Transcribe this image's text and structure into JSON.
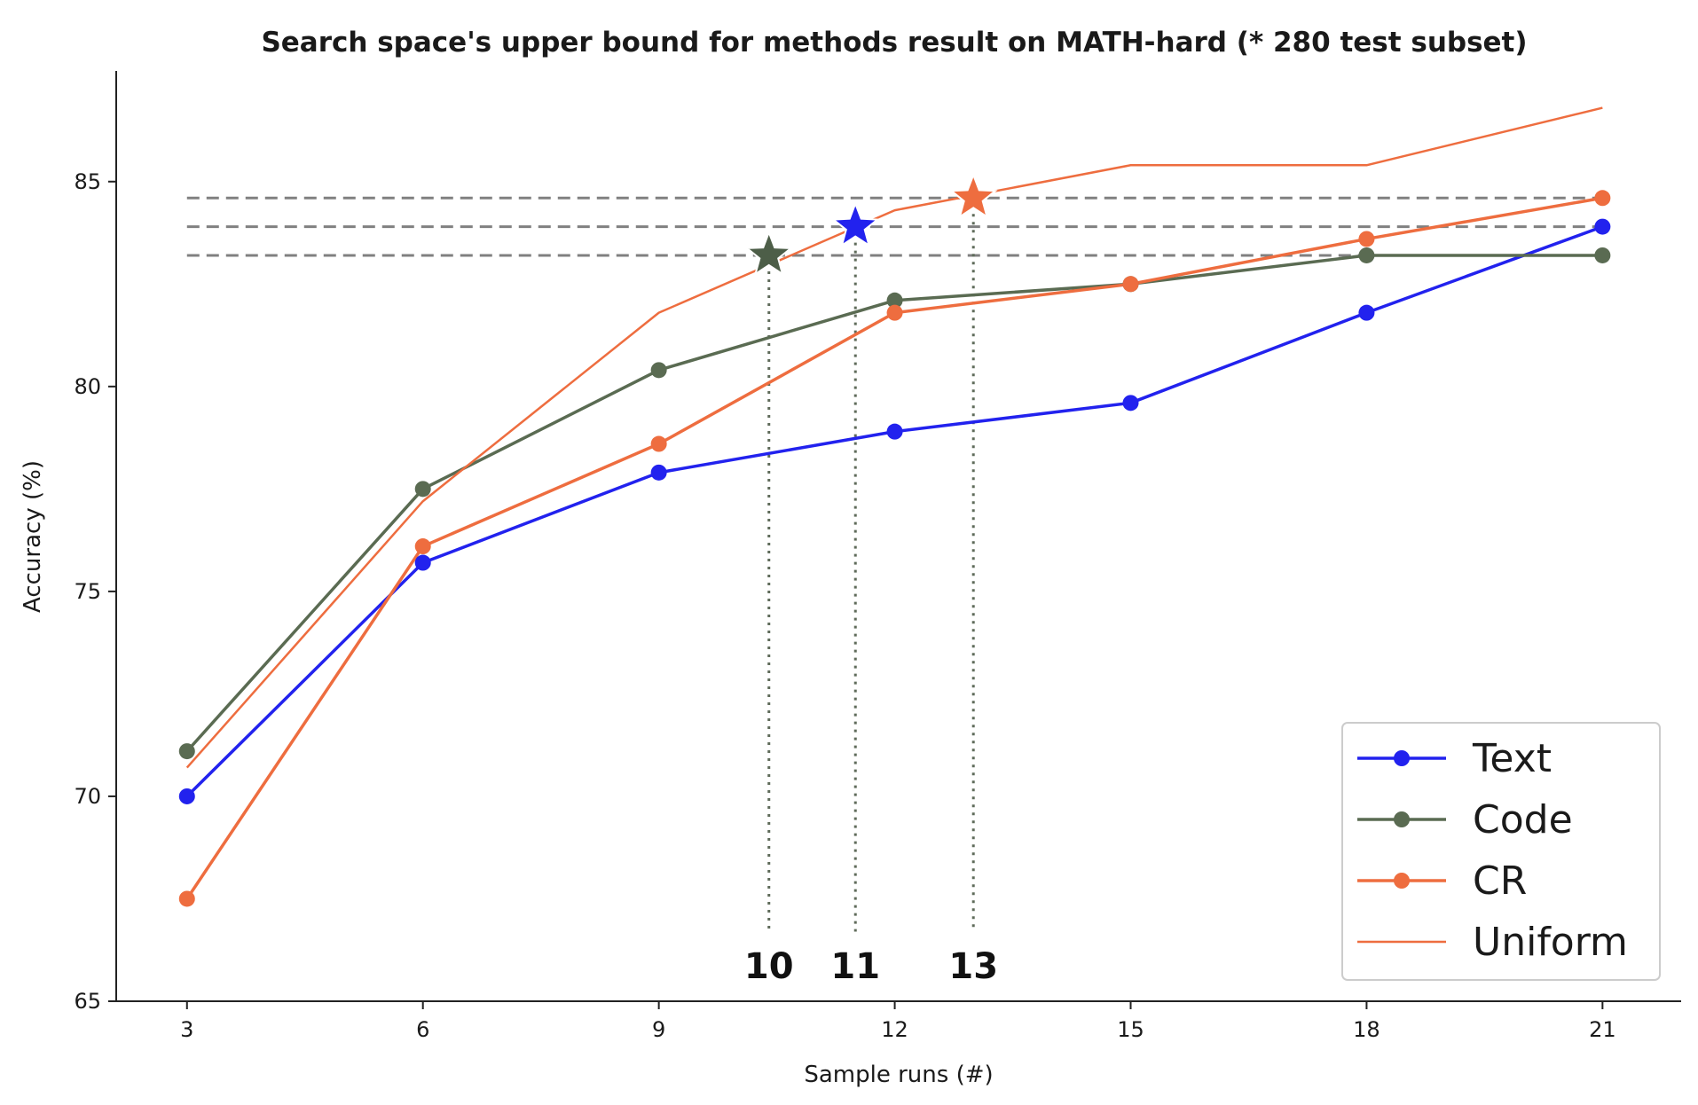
{
  "chart_data": {
    "type": "line",
    "title": "Search space's upper bound for methods result on MATH-hard (* 280 test subset)",
    "xlabel": "Sample runs (#)",
    "ylabel": "Accuracy (%)",
    "x": [
      3,
      6,
      9,
      12,
      15,
      18,
      21
    ],
    "xticks": [
      "3",
      "6",
      "9",
      "12",
      "15",
      "18",
      "21"
    ],
    "yticks": [
      "65",
      "70",
      "75",
      "80",
      "85"
    ],
    "xlim": [
      2.1,
      22.0
    ],
    "ylim": [
      65,
      87.7
    ],
    "grid": false,
    "legend_position": "lower-right",
    "series": [
      {
        "name": "Text",
        "color": "#2222ee",
        "marker": "circle",
        "values": [
          70.0,
          75.7,
          77.9,
          78.9,
          79.6,
          81.8,
          83.9
        ]
      },
      {
        "name": "Code",
        "color": "#5a6b52",
        "marker": "circle",
        "values": [
          71.1,
          77.5,
          80.4,
          82.1,
          82.5,
          83.2,
          83.2
        ]
      },
      {
        "name": "CR",
        "color": "#ee6d3f",
        "marker": "circle",
        "values": [
          67.5,
          76.1,
          78.6,
          81.8,
          82.5,
          83.6,
          84.6
        ]
      },
      {
        "name": "Uniform",
        "color": "#ee6d3f",
        "marker": "none",
        "values": [
          70.7,
          77.2,
          81.8,
          84.3,
          85.4,
          85.4,
          86.8
        ]
      }
    ],
    "reference_lines": [
      {
        "y": 84.6,
        "x_from": 3,
        "x_to": 21,
        "style": "dashed",
        "color": "#808080"
      },
      {
        "y": 83.9,
        "x_from": 3,
        "x_to": 21,
        "style": "dashed",
        "color": "#808080"
      },
      {
        "y": 83.2,
        "x_from": 3,
        "x_to": 21,
        "style": "dashed",
        "color": "#808080"
      }
    ],
    "stars": [
      {
        "label": "10",
        "x": 10.4,
        "y": 83.2,
        "color": "#4d5e48"
      },
      {
        "label": "11",
        "x": 11.5,
        "y": 83.9,
        "color": "#2222ee"
      },
      {
        "label": "13",
        "x": 13.0,
        "y": 84.6,
        "color": "#ee6d3f"
      }
    ]
  }
}
